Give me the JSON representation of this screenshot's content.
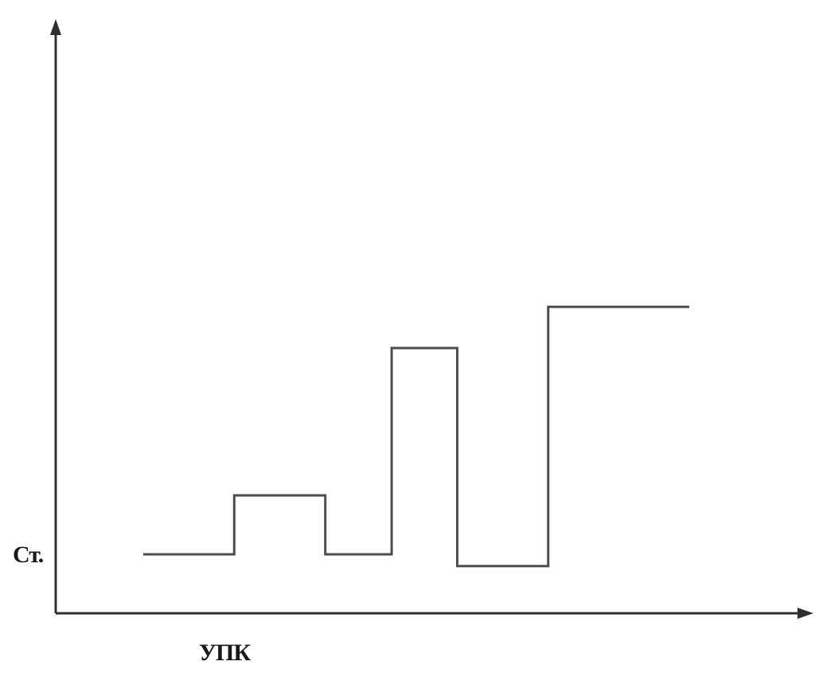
{
  "chart_data": {
    "type": "line",
    "step": true,
    "ylabel": "Ст.",
    "xlabel": "УПК",
    "x_range": [
      0,
      6
    ],
    "y_range": [
      0,
      10
    ],
    "series": [
      {
        "points": [
          [
            0,
            1
          ],
          [
            1,
            1
          ],
          [
            1,
            2
          ],
          [
            2,
            2
          ],
          [
            2,
            1
          ],
          [
            2.73,
            1
          ],
          [
            2.73,
            4.5
          ],
          [
            3.45,
            4.5
          ],
          [
            3.45,
            0.8
          ],
          [
            4.45,
            0.8
          ],
          [
            4.45,
            5.2
          ],
          [
            6,
            5.2
          ]
        ]
      }
    ],
    "grid": false,
    "legend": "none",
    "colors": {
      "line": "#4d4d4d",
      "axis": "#2f2f2f"
    }
  }
}
